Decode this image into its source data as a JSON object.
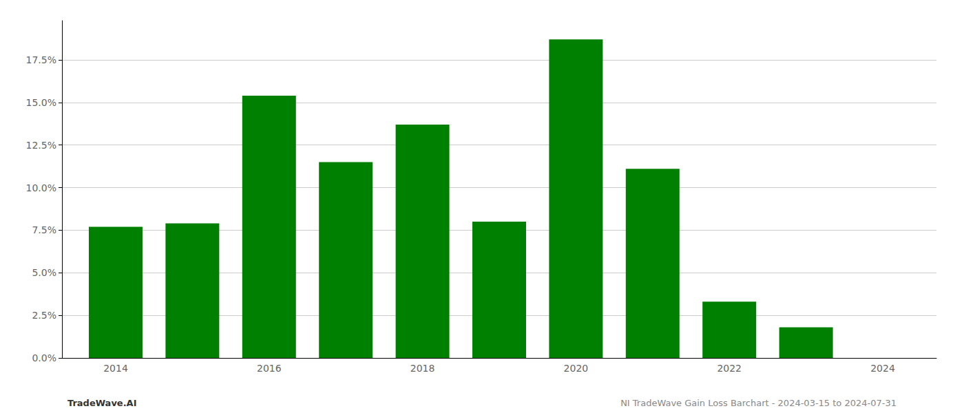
{
  "chart_data": {
    "type": "bar",
    "x": [
      2014,
      2015,
      2016,
      2017,
      2018,
      2019,
      2020,
      2021,
      2022,
      2023,
      2024
    ],
    "values": [
      0.077,
      0.079,
      0.154,
      0.115,
      0.137,
      0.08,
      0.187,
      0.111,
      0.033,
      0.018,
      0.0
    ],
    "color": "#008000",
    "xlim": [
      2013.3,
      2024.7
    ],
    "xticks": [
      2014,
      2016,
      2018,
      2020,
      2022,
      2024
    ],
    "ylim": [
      0,
      0.198
    ],
    "yticks": [
      {
        "value": 0.0,
        "label": "0.0%"
      },
      {
        "value": 0.025,
        "label": "2.5%"
      },
      {
        "value": 0.05,
        "label": "5.0%"
      },
      {
        "value": 0.075,
        "label": "7.5%"
      },
      {
        "value": 0.1,
        "label": "10.0%"
      },
      {
        "value": 0.125,
        "label": "12.5%"
      },
      {
        "value": 0.15,
        "label": "15.0%"
      },
      {
        "value": 0.175,
        "label": "17.5%"
      }
    ],
    "grid": true,
    "annotations": [
      "TradeWave.AI",
      "NI TradeWave Gain Loss Barchart - 2024-03-15 to 2024-07-31"
    ]
  }
}
